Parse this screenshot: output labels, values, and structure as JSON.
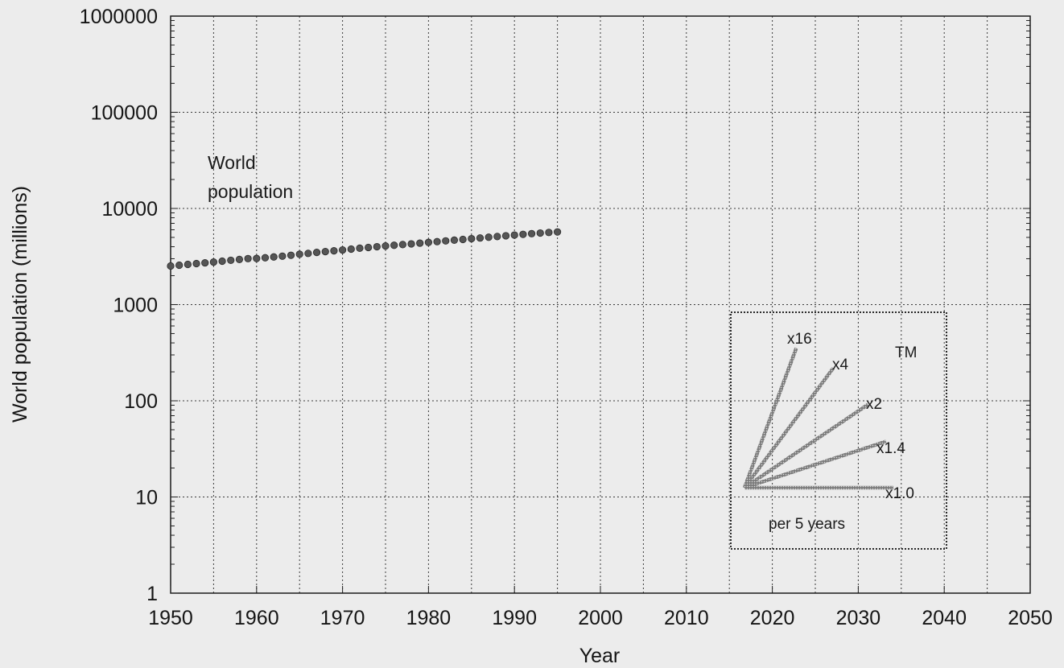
{
  "chart_data": {
    "type": "scatter",
    "title": "",
    "xlabel": "Year",
    "ylabel": "World population (millions)",
    "xlim": [
      1950,
      2050
    ],
    "ylim": [
      1,
      1000000
    ],
    "y_scale": "log",
    "grid": true,
    "x_ticks": [
      "1950",
      "1960",
      "1970",
      "1980",
      "1990",
      "2000",
      "2010",
      "2020",
      "2030",
      "2040",
      "2050"
    ],
    "y_ticks": [
      "1",
      "10",
      "100",
      "1000",
      "10000",
      "100000",
      "1000000"
    ],
    "annotation": "World population",
    "point_color": "#555555",
    "series": [
      {
        "x": [
          1950,
          1951,
          1952,
          1953,
          1954,
          1955,
          1956,
          1957,
          1958,
          1959,
          1960,
          1961,
          1962,
          1963,
          1964,
          1965,
          1966,
          1967,
          1968,
          1969,
          1970,
          1971,
          1972,
          1973,
          1974,
          1975,
          1976,
          1977,
          1978,
          1979,
          1980,
          1981,
          1982,
          1983,
          1984,
          1985,
          1986,
          1987,
          1988,
          1989,
          1990,
          1991,
          1992,
          1993,
          1994,
          1995
        ],
        "y": [
          2520,
          2570,
          2620,
          2670,
          2720,
          2770,
          2830,
          2890,
          2950,
          3010,
          3020,
          3070,
          3130,
          3190,
          3260,
          3340,
          3410,
          3490,
          3560,
          3630,
          3700,
          3780,
          3860,
          3930,
          4000,
          4070,
          4140,
          4210,
          4280,
          4360,
          4440,
          4520,
          4600,
          4680,
          4760,
          4850,
          4930,
          5020,
          5110,
          5200,
          5290,
          5380,
          5470,
          5550,
          5630,
          5700
        ]
      }
    ],
    "legend": {
      "lines": [
        {
          "label": "x16",
          "factor": 16
        },
        {
          "label": "x4",
          "factor": 4
        },
        {
          "label": "x2",
          "factor": 2
        },
        {
          "label": "x1.4",
          "factor": 1.4
        },
        {
          "label": "x1.0",
          "factor": 1.0
        }
      ],
      "caption": "per 5 years",
      "mark": "TM"
    }
  }
}
